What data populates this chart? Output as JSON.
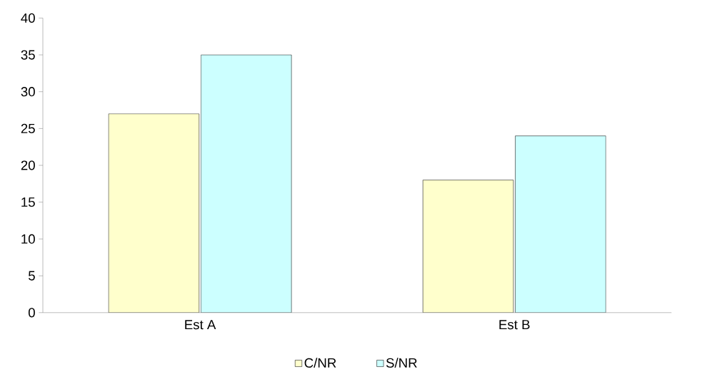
{
  "chart_data": {
    "type": "bar",
    "categories": [
      "Est A",
      "Est B"
    ],
    "series": [
      {
        "name": "C/NR",
        "color": "#ffffcc",
        "values": [
          27,
          18
        ]
      },
      {
        "name": "S/NR",
        "color": "#ccffff",
        "values": [
          35,
          24
        ]
      }
    ],
    "ylim": [
      0,
      40
    ],
    "yticks": [
      0,
      5,
      10,
      15,
      20,
      25,
      30,
      35,
      40
    ],
    "grid": false,
    "legend": "bottom"
  }
}
